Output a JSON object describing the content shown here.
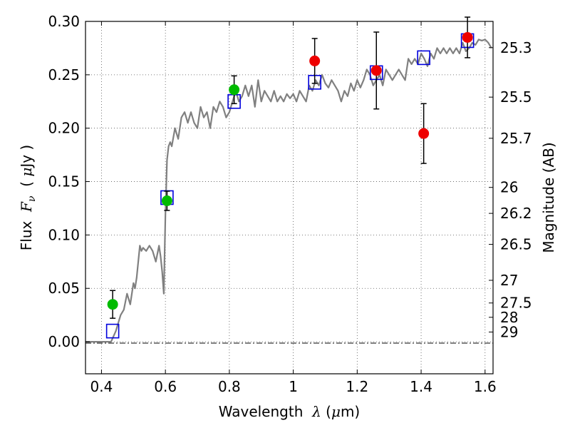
{
  "chart_data": {
    "type": "scatter",
    "xlabel_parts": [
      "Wavelength  ",
      "λ",
      " (",
      "μ",
      "m)"
    ],
    "ylabel_parts": [
      "Flux  ",
      "F",
      "ν",
      "  ( ",
      "μ",
      "Jy )"
    ],
    "y2label": "Magnitude (AB)",
    "xlim": [
      0.35,
      1.625
    ],
    "ylim": [
      -0.03,
      0.3
    ],
    "grid": true,
    "x_ticks": [
      0.4,
      0.6,
      0.8,
      1.0,
      1.2,
      1.4,
      1.6
    ],
    "x_tick_labels": [
      "0.4",
      "0.6",
      "0.8",
      "1",
      "1.2",
      "1.4",
      "1.6"
    ],
    "y_ticks": [
      0.0,
      0.05,
      0.1,
      0.15,
      0.2,
      0.25,
      0.3
    ],
    "y_tick_labels": [
      "0.00",
      "0.05",
      "0.10",
      "0.15",
      "0.20",
      "0.25",
      "0.30"
    ],
    "mag_ticks": [
      "25.3",
      "25.5",
      "25.7",
      "26",
      "26.2",
      "26.5",
      "27",
      "27.5",
      "28",
      "29"
    ],
    "colors": {
      "model": "#808080",
      "green": "#00bb00",
      "red": "#ee0000",
      "box": "#0000dd",
      "errorbar": "#000000",
      "grid": "#555555"
    },
    "model_spectrum": {
      "x": [
        0.35,
        0.43,
        0.445,
        0.46,
        0.47,
        0.48,
        0.49,
        0.5,
        0.505,
        0.51,
        0.52,
        0.525,
        0.53,
        0.54,
        0.55,
        0.56,
        0.57,
        0.58,
        0.585,
        0.59,
        0.595,
        0.6,
        0.605,
        0.61,
        0.615,
        0.62,
        0.63,
        0.64,
        0.65,
        0.66,
        0.67,
        0.68,
        0.69,
        0.7,
        0.71,
        0.72,
        0.73,
        0.74,
        0.75,
        0.76,
        0.77,
        0.78,
        0.79,
        0.8,
        0.81,
        0.82,
        0.83,
        0.84,
        0.85,
        0.86,
        0.87,
        0.88,
        0.89,
        0.9,
        0.91,
        0.92,
        0.93,
        0.94,
        0.95,
        0.96,
        0.97,
        0.98,
        0.99,
        1.0,
        1.01,
        1.02,
        1.03,
        1.04,
        1.05,
        1.06,
        1.07,
        1.08,
        1.09,
        1.1,
        1.11,
        1.12,
        1.13,
        1.14,
        1.15,
        1.16,
        1.17,
        1.18,
        1.19,
        1.2,
        1.21,
        1.22,
        1.23,
        1.24,
        1.25,
        1.26,
        1.27,
        1.28,
        1.29,
        1.3,
        1.31,
        1.32,
        1.33,
        1.34,
        1.35,
        1.36,
        1.37,
        1.38,
        1.39,
        1.4,
        1.41,
        1.42,
        1.43,
        1.44,
        1.45,
        1.46,
        1.47,
        1.48,
        1.49,
        1.5,
        1.51,
        1.52,
        1.53,
        1.54,
        1.55,
        1.56,
        1.57,
        1.58,
        1.59,
        1.6,
        1.61,
        1.62
      ],
      "y": [
        0.0,
        0.0,
        0.01,
        0.025,
        0.03,
        0.045,
        0.035,
        0.055,
        0.05,
        0.06,
        0.09,
        0.085,
        0.088,
        0.085,
        0.09,
        0.085,
        0.075,
        0.09,
        0.08,
        0.065,
        0.045,
        0.12,
        0.17,
        0.183,
        0.187,
        0.183,
        0.2,
        0.19,
        0.21,
        0.215,
        0.205,
        0.215,
        0.205,
        0.2,
        0.22,
        0.21,
        0.215,
        0.2,
        0.22,
        0.215,
        0.225,
        0.22,
        0.21,
        0.215,
        0.225,
        0.235,
        0.225,
        0.23,
        0.24,
        0.23,
        0.24,
        0.22,
        0.245,
        0.225,
        0.235,
        0.23,
        0.225,
        0.235,
        0.225,
        0.23,
        0.225,
        0.232,
        0.228,
        0.232,
        0.225,
        0.235,
        0.23,
        0.225,
        0.24,
        0.235,
        0.245,
        0.24,
        0.25,
        0.242,
        0.238,
        0.245,
        0.24,
        0.235,
        0.225,
        0.235,
        0.23,
        0.242,
        0.235,
        0.245,
        0.238,
        0.245,
        0.255,
        0.25,
        0.24,
        0.245,
        0.25,
        0.24,
        0.255,
        0.25,
        0.245,
        0.25,
        0.255,
        0.25,
        0.245,
        0.265,
        0.26,
        0.265,
        0.26,
        0.27,
        0.265,
        0.258,
        0.27,
        0.265,
        0.275,
        0.27,
        0.275,
        0.27,
        0.275,
        0.27,
        0.275,
        0.27,
        0.28,
        0.272,
        0.275,
        0.28,
        0.278,
        0.283,
        0.282,
        0.283,
        0.28,
        0.275
      ]
    },
    "green_points": [
      {
        "x": 0.435,
        "y": 0.035,
        "err": 0.013
      },
      {
        "x": 0.605,
        "y": 0.132,
        "err": 0.009
      },
      {
        "x": 0.815,
        "y": 0.236,
        "err": 0.013
      }
    ],
    "red_points": [
      {
        "x": 1.067,
        "y": 0.263,
        "err": 0.021
      },
      {
        "x": 1.26,
        "y": 0.254,
        "err": 0.036
      },
      {
        "x": 1.408,
        "y": 0.195,
        "err": 0.028
      },
      {
        "x": 1.545,
        "y": 0.285,
        "err": 0.019
      }
    ],
    "model_boxes": [
      {
        "x": 0.435,
        "y": 0.01
      },
      {
        "x": 0.605,
        "y": 0.135
      },
      {
        "x": 0.815,
        "y": 0.225
      },
      {
        "x": 1.067,
        "y": 0.243
      },
      {
        "x": 1.26,
        "y": 0.252
      },
      {
        "x": 1.408,
        "y": 0.266
      },
      {
        "x": 1.545,
        "y": 0.282
      }
    ]
  }
}
